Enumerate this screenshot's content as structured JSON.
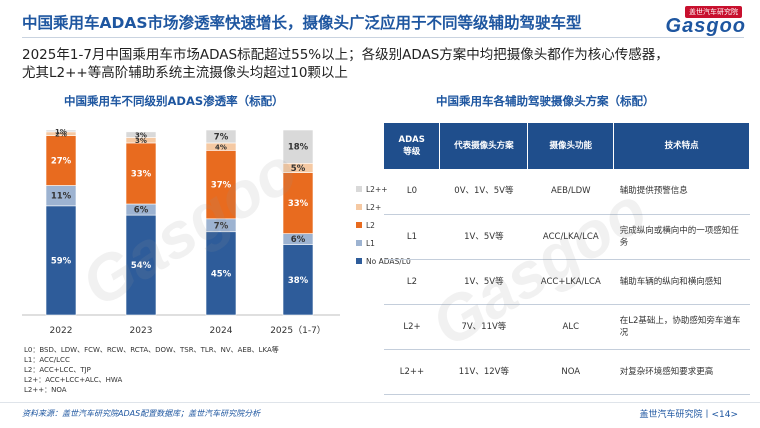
{
  "title": "中国乘用车ADAS市场渗透率快速增长，摄像头广泛应用于不同等级辅助驾驶车型",
  "logo": {
    "top": "盖世汽车研究院",
    "main": "Gasgoo"
  },
  "summary": {
    "line1": "2025年1-7月中国乘用车市场ADAS标配超过55%以上；各级别ADAS方案中均把摄像头都作为核心传感器，",
    "line2": "尤其L2++等高阶辅助系统主流摄像头均超过10颗以上"
  },
  "chart_title": "中国乘用车不同级别ADAS渗透率（标配）",
  "chart_data": {
    "type": "bar",
    "stacked": true,
    "categories": [
      "2022",
      "2023",
      "2024",
      "2025（1-7）"
    ],
    "series": [
      {
        "name": "No ADAS/L0",
        "color": "#2e5c9a",
        "values": [
          59,
          54,
          45,
          38
        ],
        "labels": [
          "59%",
          "54%",
          "45%",
          "38%"
        ]
      },
      {
        "name": "L1",
        "color": "#9db3d1",
        "values": [
          11,
          6,
          7,
          6
        ],
        "labels": [
          "11%",
          "6%",
          "7%",
          "6%"
        ]
      },
      {
        "name": "L2",
        "color": "#e86b1f",
        "values": [
          27,
          33,
          37,
          33
        ],
        "labels": [
          "27%",
          "33%",
          "37%",
          "33%"
        ]
      },
      {
        "name": "L2+",
        "color": "#f5c9a3",
        "values": [
          2,
          3,
          4,
          5
        ],
        "labels": [
          "2%",
          "3%",
          "4%",
          "5%"
        ]
      },
      {
        "name": "L2++",
        "color": "#d9d9d9",
        "values": [
          1,
          3,
          7,
          18
        ],
        "labels": [
          "1%",
          "3%",
          "7%",
          "18%"
        ]
      }
    ],
    "ylim": [
      0,
      100
    ],
    "legend_position": "right",
    "grid": false
  },
  "notes": [
    "L0：BSD、LDW、FCW、RCW、RCTA、DOW、TSR、TLR、NV、AEB、LKA等",
    "L1：ACC/LCC",
    "L2：ACC+LCC、TJP",
    "L2+：ACC+LCC+ALC、HWA",
    "L2++：NOA"
  ],
  "table_title": "中国乘用车各辅助驾驶摄像头方案（标配）",
  "table": {
    "headers": [
      "ADAS\n等级",
      "代表摄像头方案",
      "摄像头功能",
      "技术特点"
    ],
    "rows": [
      {
        "level": "L0",
        "cams": "0V、1V、5V等",
        "func": "AEB/LDW",
        "feature": "辅助提供预警信息"
      },
      {
        "level": "L1",
        "cams": "1V、5V等",
        "func": "ACC/LKA/LCA",
        "feature": "完成纵向或横向中的一项感知任务"
      },
      {
        "level": "L2",
        "cams": "1V、5V等",
        "func": "ACC+LKA/LCA",
        "feature": "辅助车辆的纵向和横向感知"
      },
      {
        "level": "L2+",
        "cams": "7V、11V等",
        "func": "ALC",
        "feature": "在L2基础上，协助感知旁车道车况"
      },
      {
        "level": "L2++",
        "cams": "11V、12V等",
        "func": "NOA",
        "feature": "对复杂环境感知要求更高"
      }
    ]
  },
  "footer": {
    "source": "资料来源：盖世汽车研究院ADAS配置数据库；盖世汽车研究院分析",
    "page": "盖世汽车研究院丨<14>"
  },
  "watermark": {
    "text": "Gasgoo"
  }
}
